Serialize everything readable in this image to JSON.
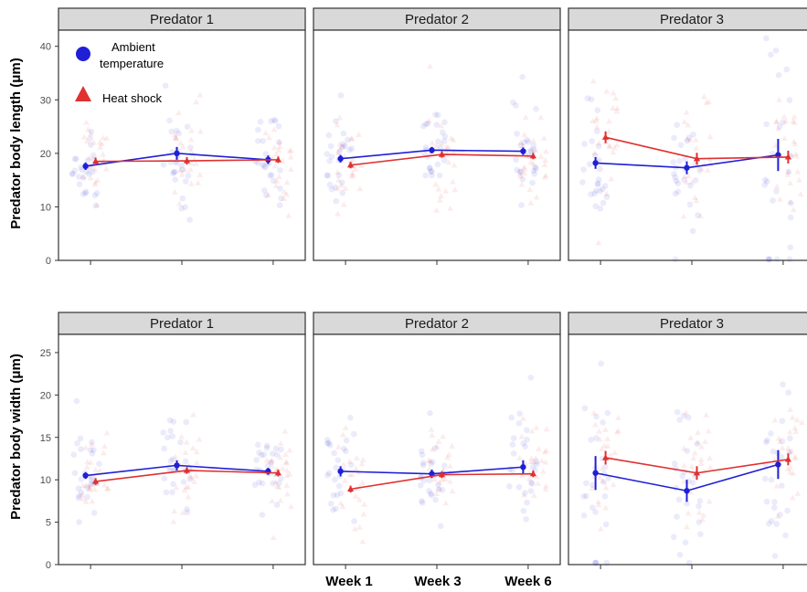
{
  "colors": {
    "ambient": "#1f1fd6",
    "heat": "#e03030",
    "strip_bg": "#d9d9d9",
    "panel_border": "#333333"
  },
  "legend": {
    "ambient_line1": "Ambient",
    "ambient_line2": "temperature",
    "heat": "Heat shock"
  },
  "x_categories": [
    "Week 1",
    "Week 3",
    "Week 6"
  ],
  "chart_data": [
    {
      "type": "line",
      "ylabel": "Predator body length (μm)",
      "ylim": [
        0,
        42
      ],
      "yticks": [
        0,
        10,
        20,
        30,
        40
      ],
      "panels": [
        {
          "strip": "Predator 1",
          "series": [
            {
              "name": "Ambient temperature",
              "values": [
                17.6,
                20.0,
                18.8
              ],
              "errors": [
                0.7,
                1.2,
                0.8
              ]
            },
            {
              "name": "Heat shock",
              "values": [
                18.5,
                18.6,
                18.8
              ],
              "errors": [
                0.7,
                0.7,
                0.6
              ]
            }
          ]
        },
        {
          "strip": "Predator 2",
          "series": [
            {
              "name": "Ambient temperature",
              "values": [
                19.0,
                20.6,
                20.4
              ],
              "errors": [
                0.7,
                0.6,
                0.7
              ]
            },
            {
              "name": "Heat shock",
              "values": [
                17.8,
                19.8,
                19.5
              ],
              "errors": [
                0.6,
                0.6,
                0.6
              ]
            }
          ]
        },
        {
          "strip": "Predator 3",
          "series": [
            {
              "name": "Ambient temperature",
              "values": [
                18.2,
                17.3,
                19.7
              ],
              "errors": [
                1.1,
                1.2,
                3.0
              ]
            },
            {
              "name": "Heat shock",
              "values": [
                23.0,
                19.0,
                19.3
              ],
              "errors": [
                1.1,
                1.1,
                1.2
              ]
            }
          ]
        }
      ]
    },
    {
      "type": "line",
      "ylabel": "Predator body width (μm)",
      "ylim": [
        0,
        26.5
      ],
      "yticks": [
        0,
        5,
        10,
        15,
        20,
        25
      ],
      "panels": [
        {
          "strip": "Predator 1",
          "series": [
            {
              "name": "Ambient temperature",
              "values": [
                10.5,
                11.7,
                11.0
              ],
              "errors": [
                0.4,
                0.6,
                0.4
              ]
            },
            {
              "name": "Heat shock",
              "values": [
                9.8,
                11.1,
                10.8
              ],
              "errors": [
                0.4,
                0.4,
                0.4
              ]
            }
          ]
        },
        {
          "strip": "Predator 2",
          "series": [
            {
              "name": "Ambient temperature",
              "values": [
                11.0,
                10.7,
                11.5
              ],
              "errors": [
                0.6,
                0.5,
                0.8
              ]
            },
            {
              "name": "Heat shock",
              "values": [
                8.9,
                10.6,
                10.7
              ],
              "errors": [
                0.4,
                0.4,
                0.4
              ]
            }
          ]
        },
        {
          "strip": "Predator 3",
          "series": [
            {
              "name": "Ambient temperature",
              "values": [
                10.8,
                8.7,
                11.8
              ],
              "errors": [
                2.0,
                1.3,
                1.7
              ]
            },
            {
              "name": "Heat shock",
              "values": [
                12.6,
                10.8,
                12.4
              ],
              "errors": [
                0.8,
                0.8,
                0.7
              ]
            }
          ]
        }
      ]
    }
  ]
}
